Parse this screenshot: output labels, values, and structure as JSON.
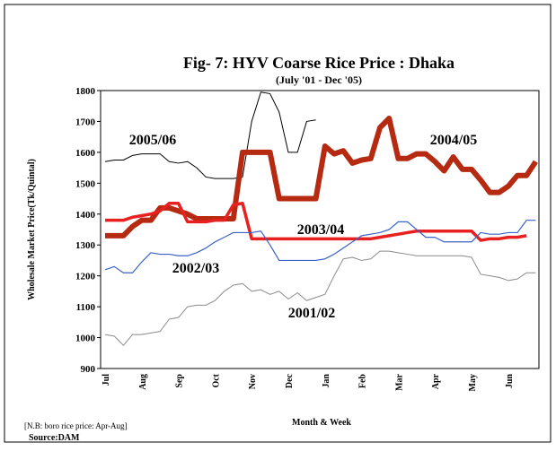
{
  "chart_data": {
    "type": "line",
    "title": "Fig- 7: HYV Coarse Rice Price : Dhaka",
    "subtitle": "(July '01 - Dec '05)",
    "y_label": "Wholesale Market Price(Tk/Quintal)",
    "x_label": "Month & Week",
    "notes": [
      "[N.B: boro rice price: Apr-Aug]",
      "Source:DAM"
    ],
    "categories": [
      "Jul",
      null,
      null,
      null,
      "Aug",
      null,
      null,
      null,
      "Sep",
      null,
      null,
      null,
      "Oct",
      null,
      null,
      null,
      "Nov",
      null,
      null,
      null,
      "Dec",
      null,
      null,
      null,
      "Jan",
      null,
      null,
      null,
      "Feb",
      null,
      null,
      null,
      "Mar",
      null,
      null,
      null,
      "Apr",
      null,
      null,
      null,
      "May",
      null,
      null,
      null,
      "Jun",
      null,
      null,
      null
    ],
    "ylim": [
      900,
      1800
    ],
    "yticks": [
      900,
      1000,
      1100,
      1200,
      1300,
      1400,
      1500,
      1600,
      1700,
      1800
    ],
    "annotations": [
      "2005/06",
      "2004/05",
      "2003/04",
      "2002/03",
      "2001/02"
    ],
    "series": [
      {
        "name": "2005/06",
        "color": "#000000",
        "values": [
          1570,
          1575,
          1575,
          1590,
          1595,
          1595,
          1595,
          1570,
          1565,
          1570,
          1550,
          1520,
          1515,
          1515,
          1515,
          1520,
          1700,
          1795,
          1790,
          1730,
          1600,
          1600,
          1700,
          1705,
          null,
          null,
          null,
          null,
          null,
          null,
          null,
          null,
          null,
          null,
          null,
          null,
          null,
          null,
          null,
          null,
          null,
          null,
          null,
          null,
          null,
          null,
          null,
          null
        ]
      },
      {
        "name": "2004/05",
        "color": "#b52a10",
        "values": [
          1330,
          1330,
          1330,
          1360,
          1380,
          1380,
          1420,
          1420,
          1410,
          1400,
          1385,
          1385,
          1385,
          1385,
          1385,
          1600,
          1600,
          1600,
          1600,
          1450,
          1450,
          1450,
          1450,
          1450,
          1620,
          1595,
          1605,
          1565,
          1575,
          1580,
          1680,
          1710,
          1580,
          1580,
          1595,
          1595,
          1570,
          1540,
          1585,
          1545,
          1545,
          1510,
          1470,
          1470,
          1490,
          1525,
          1525,
          1570
        ]
      },
      {
        "name": "2003/04",
        "color": "#e82020",
        "values": [
          1380,
          1380,
          1380,
          1390,
          1395,
          1400,
          1410,
          1435,
          1435,
          1375,
          1375,
          1375,
          1380,
          1380,
          1430,
          1435,
          1320,
          1320,
          1320,
          1320,
          1320,
          1320,
          1320,
          1320,
          1320,
          1320,
          1320,
          1320,
          1320,
          1320,
          1325,
          1330,
          1335,
          1340,
          1345,
          1345,
          1345,
          1345,
          1345,
          1345,
          1345,
          1315,
          1320,
          1320,
          1325,
          1325,
          1330,
          null
        ]
      },
      {
        "name": "2002/03",
        "color": "#3a62c8",
        "values": [
          1220,
          1230,
          1210,
          1210,
          1245,
          1275,
          1270,
          1270,
          1265,
          1265,
          1275,
          1290,
          1310,
          1325,
          1340,
          1340,
          1340,
          1345,
          1300,
          1250,
          1250,
          1250,
          1250,
          1250,
          1255,
          1270,
          1290,
          1310,
          1330,
          1335,
          1340,
          1350,
          1375,
          1375,
          1350,
          1325,
          1325,
          1310,
          1310,
          1310,
          1310,
          1340,
          1335,
          1335,
          1340,
          1340,
          1380,
          1380
        ]
      },
      {
        "name": "2001/02",
        "color": "#8a8a8a",
        "values": [
          1010,
          1005,
          975,
          1010,
          1010,
          1015,
          1020,
          1060,
          1065,
          1100,
          1105,
          1105,
          1120,
          1150,
          1170,
          1175,
          1150,
          1155,
          1140,
          1150,
          1125,
          1145,
          1120,
          1130,
          1140,
          1200,
          1255,
          1260,
          1250,
          1255,
          1280,
          1280,
          1275,
          1270,
          1265,
          1265,
          1265,
          1265,
          1265,
          1265,
          1260,
          1205,
          1200,
          1195,
          1185,
          1190,
          1210,
          1210
        ]
      }
    ]
  }
}
